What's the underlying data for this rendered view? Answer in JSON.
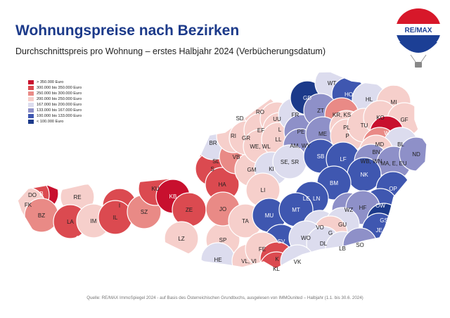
{
  "title": "Wohnungspreise nach Bezirken",
  "subtitle": "Durchschnittspreis pro Wohnung – erstes Halbjahr 2024 (Verbücherungsdatum)",
  "logo_text": "RE/MAX",
  "legend": [
    {
      "label": "> 350.000 Euro",
      "color": "#c8102e"
    },
    {
      "label": "300.000   bis   350.000  Euro",
      "color": "#db4a50"
    },
    {
      "label": "250.000   bis   300.000  Euro",
      "color": "#e98a86"
    },
    {
      "label": "200.000   bis   250.000  Euro",
      "color": "#f6cfcb"
    },
    {
      "label": "167.000   bis   200.000  Euro",
      "color": "#dcdcee"
    },
    {
      "label": "133.000   bis   167.000  Euro",
      "color": "#8e90c8"
    },
    {
      "label": "100.000   bis   133.000  Euro",
      "color": "#3f57b0"
    },
    {
      "label": "< 100.000 Euro",
      "color": "#1c3a8a"
    }
  ],
  "districts": [
    {
      "code": "B",
      "cls": 0
    },
    {
      "code": "DO",
      "cls": 1
    },
    {
      "code": "FK",
      "cls": 3
    },
    {
      "code": "BZ",
      "cls": 2
    },
    {
      "code": "RE",
      "cls": 3
    },
    {
      "code": "LA",
      "cls": 1
    },
    {
      "code": "IM",
      "cls": 3
    },
    {
      "code": "I",
      "cls": 1
    },
    {
      "code": "IL",
      "cls": 1
    },
    {
      "code": "SZ",
      "cls": 2
    },
    {
      "code": "KU",
      "cls": 1
    },
    {
      "code": "KB",
      "cls": 0
    },
    {
      "code": "ZE",
      "cls": 1
    },
    {
      "code": "LZ",
      "cls": 3
    },
    {
      "code": "SP",
      "cls": 3
    },
    {
      "code": "HE",
      "cls": 4
    },
    {
      "code": "VL, VI",
      "cls": 3
    },
    {
      "code": "SL",
      "cls": 1
    },
    {
      "code": "S",
      "cls": 1
    },
    {
      "code": "HA",
      "cls": 1
    },
    {
      "code": "JO",
      "cls": 2
    },
    {
      "code": "TA",
      "cls": 3
    },
    {
      "code": "BR",
      "cls": 4
    },
    {
      "code": "VB",
      "cls": 2
    },
    {
      "code": "GM",
      "cls": 3
    },
    {
      "code": "SD",
      "cls": 3
    },
    {
      "code": "RO",
      "cls": 3
    },
    {
      "code": "RI",
      "cls": 3
    },
    {
      "code": "GR",
      "cls": 3
    },
    {
      "code": "EF",
      "cls": 3
    },
    {
      "code": "WE, WL",
      "cls": 3
    },
    {
      "code": "UU",
      "cls": 3
    },
    {
      "code": "L",
      "cls": 3
    },
    {
      "code": "LL",
      "cls": 3
    },
    {
      "code": "FR",
      "cls": 4
    },
    {
      "code": "PE",
      "cls": 5
    },
    {
      "code": "AM, WY",
      "cls": 5
    },
    {
      "code": "KI",
      "cls": 4
    },
    {
      "code": "SE, SR",
      "cls": 4
    },
    {
      "code": "LI",
      "cls": 3
    },
    {
      "code": "GD",
      "cls": 7
    },
    {
      "code": "WT",
      "cls": 4
    },
    {
      "code": "HO",
      "cls": 6
    },
    {
      "code": "HL",
      "cls": 4
    },
    {
      "code": "ZT",
      "cls": 5
    },
    {
      "code": "KR, KS",
      "cls": 2
    },
    {
      "code": "ME",
      "cls": 5
    },
    {
      "code": "PL",
      "cls": 3
    },
    {
      "code": "P",
      "cls": 3
    },
    {
      "code": "TU",
      "cls": 3
    },
    {
      "code": "MI",
      "cls": 3
    },
    {
      "code": "KO",
      "cls": 3
    },
    {
      "code": "GF",
      "cls": 3
    },
    {
      "code": "W",
      "cls": 0
    },
    {
      "code": "MD",
      "cls": 2
    },
    {
      "code": "BL",
      "cls": 4
    },
    {
      "code": "BN",
      "cls": 3
    },
    {
      "code": "SB",
      "cls": 6
    },
    {
      "code": "LF",
      "cls": 6
    },
    {
      "code": "WB, WN",
      "cls": 5
    },
    {
      "code": "MA, E, EU",
      "cls": 5
    },
    {
      "code": "ND",
      "cls": 5
    },
    {
      "code": "NK",
      "cls": 6
    },
    {
      "code": "BM",
      "cls": 6
    },
    {
      "code": "LE, LN",
      "cls": 6
    },
    {
      "code": "OP",
      "cls": 6
    },
    {
      "code": "OW",
      "cls": 6
    },
    {
      "code": "MU",
      "cls": 6
    },
    {
      "code": "MT",
      "cls": 6
    },
    {
      "code": "WZ",
      "cls": 5
    },
    {
      "code": "HF",
      "cls": 5
    },
    {
      "code": "GS",
      "cls": 7
    },
    {
      "code": "JE",
      "cls": 6
    },
    {
      "code": "VO",
      "cls": 4
    },
    {
      "code": "GU",
      "cls": 4
    },
    {
      "code": "G",
      "cls": 3
    },
    {
      "code": "SV",
      "cls": 6
    },
    {
      "code": "WO",
      "cls": 4
    },
    {
      "code": "DL",
      "cls": 4
    },
    {
      "code": "LB",
      "cls": 4
    },
    {
      "code": "SO",
      "cls": 5
    },
    {
      "code": "FE",
      "cls": 3
    },
    {
      "code": "K",
      "cls": 1
    },
    {
      "code": "KL",
      "cls": 1
    },
    {
      "code": "VK",
      "cls": 4
    }
  ],
  "footer": "Quelle: RE/MAX ImmoSpiegel 2024 - auf Basis des Österreichischen Grundbuchs, ausgelesen von IMMOunited – Halbjahr (1.1. bis 30.6. 2024)"
}
